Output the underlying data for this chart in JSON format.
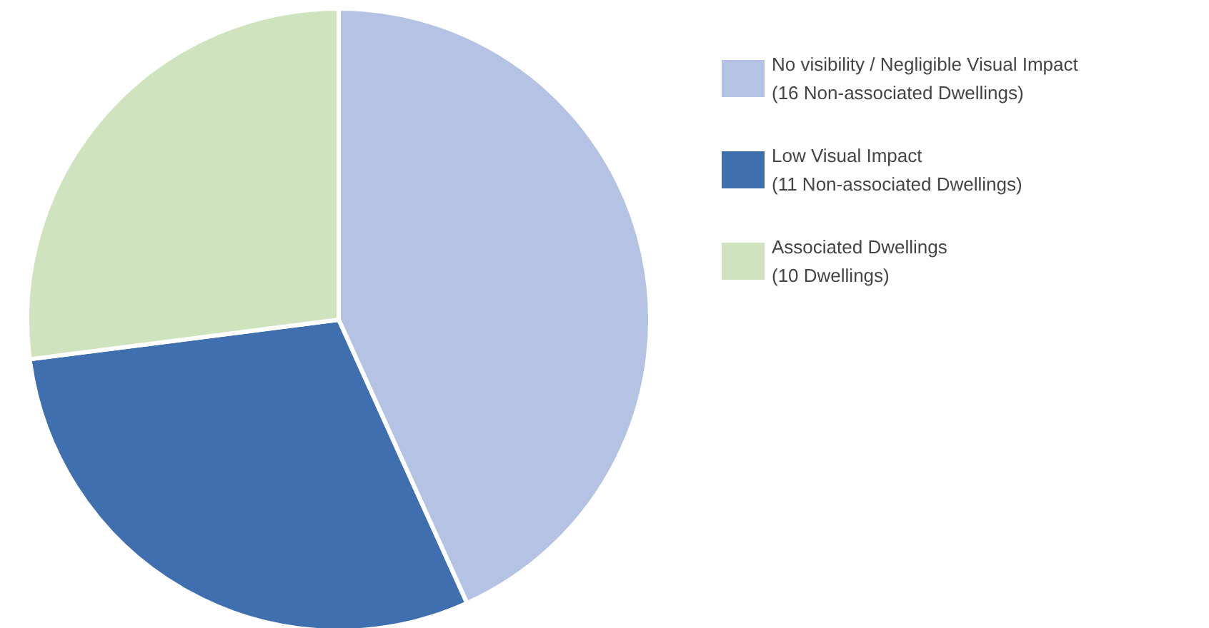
{
  "chart_data": {
    "type": "pie",
    "categories": [
      "No visibility / Negligible Visual Impact\n(16 Non-associated Dwellings)",
      "Low Visual Impact\n(11 Non-associated Dwellings)",
      "Associated Dwellings\n(10 Dwellings)"
    ],
    "values": [
      16,
      11,
      10
    ],
    "colors": [
      "#b4c3e4",
      "#3f6fae",
      "#d0e3bf"
    ],
    "legend": "top right"
  }
}
